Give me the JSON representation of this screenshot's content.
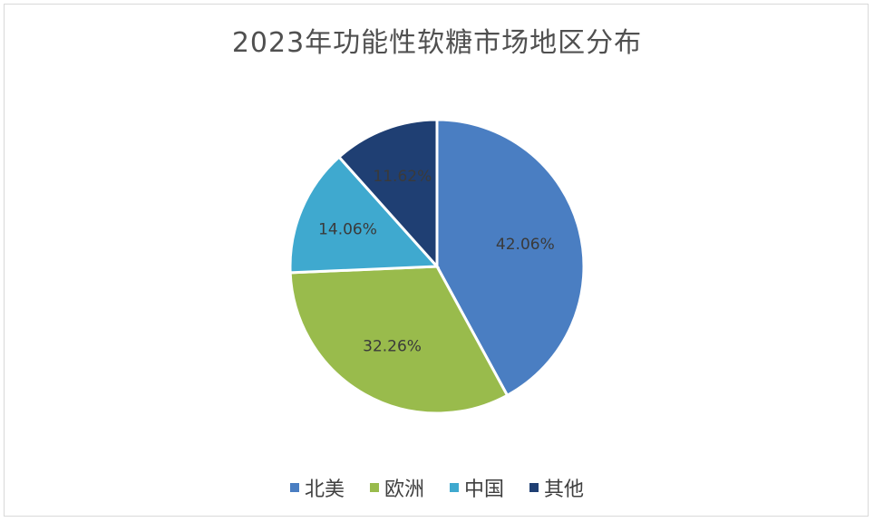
{
  "chart_data": {
    "type": "pie",
    "title": "2023年功能性软糖市场地区分布",
    "categories": [
      "北美",
      "欧洲",
      "中国",
      "其他"
    ],
    "values": [
      42.06,
      32.26,
      14.06,
      11.62
    ],
    "labels": [
      "42.06%",
      "32.26%",
      "14.06%",
      "11.62%"
    ],
    "colors": [
      "#4a7ec2",
      "#99bb4c",
      "#3fa9cf",
      "#1f3f73"
    ],
    "legend_position": "bottom"
  }
}
